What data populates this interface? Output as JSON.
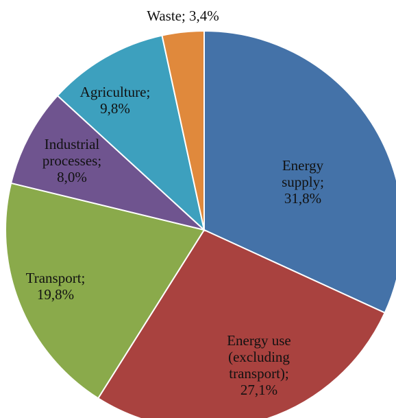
{
  "chart_data": {
    "type": "pie",
    "title": "",
    "start_angle_deg": 0,
    "direction": "clockwise",
    "slices": [
      {
        "name": "Energy supply",
        "value": 31.8,
        "color": "#4472A8",
        "label_lines": [
          "Energy",
          "supply;",
          "31,8%"
        ]
      },
      {
        "name": "Energy use (excluding transport)",
        "value": 27.1,
        "color": "#A9423F",
        "label_lines": [
          "Energy use",
          "(excluding",
          "transport);",
          "27,1%"
        ]
      },
      {
        "name": "Transport",
        "value": 19.8,
        "color": "#8AAA4B",
        "label_lines": [
          "Transport;",
          "19,8%"
        ]
      },
      {
        "name": "Industrial processes",
        "value": 8.0,
        "color": "#6F548F",
        "label_lines": [
          "Industrial",
          "processes;",
          "8,0%"
        ]
      },
      {
        "name": "Agriculture",
        "value": 9.8,
        "color": "#3DA0BE",
        "label_lines": [
          "Agriculture;",
          "9,8%"
        ]
      },
      {
        "name": "Waste",
        "value": 3.4,
        "color": "#E0893C",
        "label_lines": [
          "Waste; 3,4%"
        ]
      }
    ]
  }
}
